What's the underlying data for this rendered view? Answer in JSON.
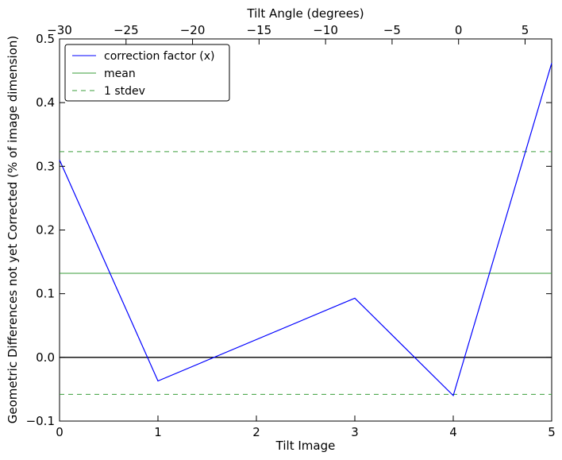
{
  "chart_data": {
    "type": "line",
    "xlabel": "Tilt Image",
    "x2label": "Tilt Angle (degrees)",
    "ylabel": "Geometric Differences not yet Corrected (% of image dimension)",
    "xlim": [
      0,
      5
    ],
    "x2lim": [
      -30,
      7
    ],
    "ylim": [
      -0.1,
      0.5
    ],
    "xticks": [
      "0",
      "1",
      "2",
      "3",
      "4",
      "5"
    ],
    "x2ticks": [
      "−30",
      "−25",
      "−20",
      "−15",
      "−10",
      "−5",
      "0",
      "5"
    ],
    "x2tick_values": [
      -30,
      -25,
      -20,
      -15,
      -10,
      -5,
      0,
      5
    ],
    "yticks": [
      "−0.1",
      "0.0",
      "0.1",
      "0.2",
      "0.3",
      "0.4",
      "0.5"
    ],
    "ytick_values": [
      -0.1,
      0.0,
      0.1,
      0.2,
      0.3,
      0.4,
      0.5
    ],
    "legend_position": "top-left",
    "grid": false,
    "series": [
      {
        "name": "correction factor (x)",
        "color": "#0000ff",
        "style": "solid",
        "x": [
          0,
          1,
          3,
          4,
          5
        ],
        "y": [
          0.31,
          -0.037,
          0.093,
          -0.06,
          0.462
        ]
      },
      {
        "name": "mean",
        "color": "#3a9e3a",
        "style": "solid",
        "y_const": 0.132
      },
      {
        "name": "1 stdev",
        "color": "#3a9e3a",
        "style": "dashed",
        "y_const": [
          0.323,
          -0.058
        ]
      }
    ],
    "reference_line": {
      "y": 0.0,
      "color": "#000000"
    }
  }
}
